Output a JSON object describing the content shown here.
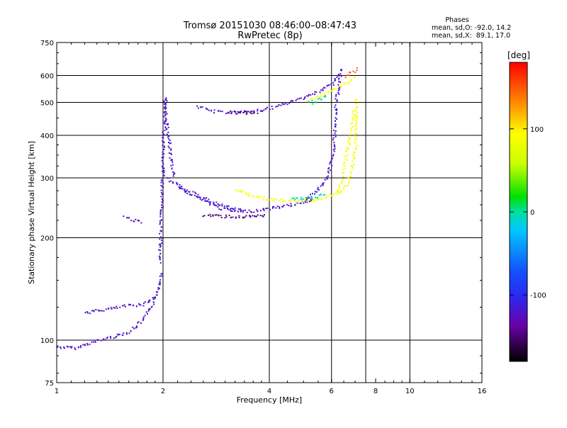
{
  "chart_data": {
    "type": "scatter",
    "title": "Tromsø 20151030 08:46:00–08:47:43",
    "subtitle": "RwPretec (8p)",
    "xlabel": "Frequency [MHz]",
    "ylabel": "Stationary phase Virtual Height [km]",
    "x_scale": "log2",
    "y_scale": "log",
    "xlim": [
      1,
      16
    ],
    "ylim": [
      75,
      750
    ],
    "xticks": [
      {
        "v": 1,
        "label": "1"
      },
      {
        "v": 2,
        "label": "2"
      },
      {
        "v": 4,
        "label": "4"
      },
      {
        "v": 6,
        "label": "6"
      },
      {
        "v": 8,
        "label": "8"
      },
      {
        "v": 10,
        "label": "10"
      },
      {
        "v": 16,
        "label": "16"
      }
    ],
    "yticks": [
      {
        "v": 75,
        "label": "75"
      },
      {
        "v": 100,
        "label": "100"
      },
      {
        "v": 200,
        "label": "200"
      },
      {
        "v": 300,
        "label": "300"
      },
      {
        "v": 400,
        "label": "400"
      },
      {
        "v": 500,
        "label": "500"
      },
      {
        "v": 600,
        "label": "600"
      },
      {
        "v": 750,
        "label": "750"
      }
    ],
    "grid_x": [
      2,
      4,
      6,
      7.5,
      10
    ],
    "grid_y": [
      100,
      200,
      300,
      400,
      500,
      600
    ],
    "info": {
      "title": "Phases",
      "line1": "mean, sd,O: -92.0, 14.2",
      "line2": "mean, sd,X:  89.1, 17.0"
    },
    "colorbar": {
      "label": "[deg]",
      "range": [
        -180,
        180
      ],
      "ticks": [
        {
          "v": 100,
          "label": "100"
        },
        {
          "v": 0,
          "label": "0"
        },
        {
          "v": -100,
          "label": "-100"
        }
      ]
    },
    "series": [
      {
        "phase_deg": -120,
        "segments": [
          {
            "f": [
              1.0,
              1.15
            ],
            "h": [
              96,
              95
            ]
          },
          {
            "f": [
              1.15,
              1.3,
              1.45,
              1.6,
              1.75,
              1.9,
              1.97
            ],
            "h": [
              96,
              100,
              103,
              106,
              115,
              132,
              160
            ]
          },
          {
            "f": [
              1.2,
              1.4,
              1.6,
              1.75,
              1.9
            ],
            "h": [
              121,
              124,
              127,
              128,
              135
            ]
          },
          {
            "f": [
              1.55,
              1.65,
              1.75
            ],
            "h": [
              232,
              226,
              224
            ]
          },
          {
            "f": [
              1.95,
              1.98,
              2.0,
              2.02,
              2.05,
              2.1,
              2.15
            ],
            "h": [
              170,
              260,
              380,
              520,
              420,
              340,
              300
            ]
          },
          {
            "f": [
              2.05,
              2.3,
              2.6,
              2.9,
              3.2,
              3.6,
              4.0,
              4.5,
              5.0,
              5.3
            ],
            "h": [
              300,
              276,
              258,
              245,
              240,
              241,
              245,
              250,
              256,
              262
            ]
          },
          {
            "f": [
              2.2,
              2.6,
              3.0,
              3.4
            ],
            "h": [
              285,
              262,
              248,
              240
            ]
          },
          {
            "f": [
              5.0,
              5.4,
              5.8,
              6.0,
              6.1,
              6.15
            ],
            "h": [
              258,
              275,
              300,
              340,
              400,
              500
            ]
          },
          {
            "f": [
              6.15,
              6.3,
              6.4
            ],
            "h": [
              500,
              580,
              640
            ]
          },
          {
            "f": [
              2.5,
              2.8,
              3.2,
              3.6,
              4.0,
              4.5,
              5.0,
              5.5,
              6.0,
              6.3
            ],
            "h": [
              488,
              472,
              468,
              472,
              482,
              500,
              520,
              540,
              570,
              610
            ]
          }
        ]
      },
      {
        "phase_deg": -150,
        "segments": [
          {
            "f": [
              2.6,
              3.0,
              3.4,
              3.9
            ],
            "h": [
              234,
              232,
              231,
              233
            ]
          },
          {
            "f": [
              3.1,
              3.4,
              3.7
            ],
            "h": [
              470,
              468,
              470
            ]
          }
        ]
      },
      {
        "phase_deg": 90,
        "segments": [
          {
            "f": [
              3.2,
              3.6,
              4.0,
              4.4,
              4.8,
              5.2
            ],
            "h": [
              278,
              266,
              260,
              258,
              257,
              260
            ]
          },
          {
            "f": [
              5.2,
              5.6,
              6.0,
              6.3,
              6.6,
              6.8,
              7.0,
              7.05
            ],
            "h": [
              258,
              262,
              268,
              275,
              285,
              310,
              380,
              520
            ]
          },
          {
            "f": [
              6.2,
              6.4,
              6.6,
              6.8,
              6.95
            ],
            "h": [
              270,
              300,
              350,
              420,
              480
            ]
          },
          {
            "f": [
              5.1,
              5.5,
              5.9,
              6.3,
              6.7,
              7.0
            ],
            "h": [
              505,
              525,
              540,
              560,
              580,
              600
            ]
          }
        ]
      },
      {
        "phase_deg": 0,
        "segments": [
          {
            "f": [
              4.6,
              5.0,
              5.4,
              5.8
            ],
            "h": [
              262,
              262,
              265,
              270
            ]
          },
          {
            "f": [
              5.2,
              5.5,
              5.8
            ],
            "h": [
              500,
              512,
              524
            ]
          }
        ]
      },
      {
        "phase_deg": 150,
        "segments": [
          {
            "f": [
              6.6,
              6.8,
              7.0,
              7.1
            ],
            "h": [
              600,
              615,
              625,
              635
            ]
          }
        ]
      }
    ]
  }
}
